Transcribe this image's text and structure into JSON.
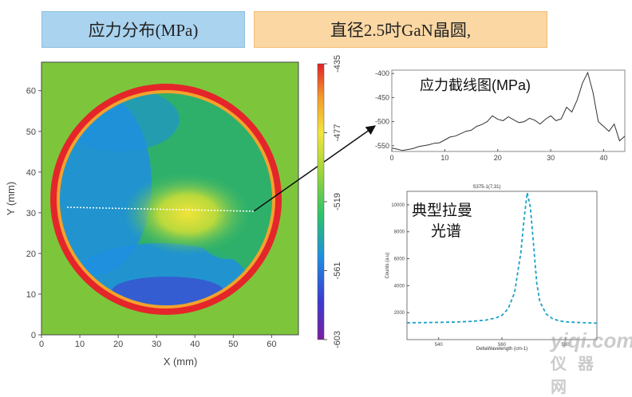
{
  "labels": {
    "stress_tag": "应力分布(MPa)",
    "wafer_tag": "直径2.5吋GaN晶圆,",
    "linescan_title": "应力截线图(MPa)",
    "raman_title_line1": "典型拉曼",
    "raman_title_line2": "光谱",
    "watermark_top": "yiqi.com",
    "watermark_bottom": "仪器网"
  },
  "chart_data": [
    {
      "type": "heatmap",
      "xlabel": "X (mm)",
      "ylabel": "Y (mm)",
      "xlim": [
        0,
        67
      ],
      "ylim": [
        0,
        67
      ],
      "xticks": [
        "0",
        "10",
        "20",
        "30",
        "40",
        "50",
        "60"
      ],
      "yticks": [
        "0",
        "10",
        "20",
        "30",
        "40",
        "50",
        "60"
      ],
      "colorbar": {
        "ticks": [
          "-435",
          "-477",
          "-519",
          "-561",
          "-603"
        ],
        "range": [
          -603,
          -435
        ],
        "colors": [
          "#7a1fa2",
          "#3b3bd1",
          "#1e8fe0",
          "#2bc36b",
          "#9ad33b",
          "#f3e53a",
          "#f39a2b",
          "#e0202a"
        ]
      },
      "annotation": "line scan at Y≈31 mm from X≈6 to X≈51 mm"
    },
    {
      "type": "line",
      "xlim": [
        0,
        44
      ],
      "ylim": [
        -562,
        -393
      ],
      "xticks": [
        "0",
        "10",
        "20",
        "30",
        "40"
      ],
      "yticks": [
        "-400",
        "-450",
        "-500",
        "-550"
      ],
      "x": [
        0,
        1,
        2,
        3,
        4,
        5,
        6,
        7,
        8,
        9,
        10,
        11,
        12,
        13,
        14,
        15,
        16,
        17,
        18,
        19,
        20,
        21,
        22,
        23,
        24,
        25,
        26,
        27,
        28,
        29,
        30,
        31,
        32,
        33,
        34,
        35,
        36,
        37,
        38,
        39,
        40,
        41,
        42,
        43,
        44
      ],
      "y": [
        -555,
        -557,
        -560,
        -558,
        -556,
        -552,
        -550,
        -548,
        -545,
        -544,
        -538,
        -532,
        -530,
        -525,
        -520,
        -518,
        -510,
        -506,
        -500,
        -488,
        -495,
        -498,
        -490,
        -496,
        -502,
        -500,
        -493,
        -497,
        -505,
        -495,
        -488,
        -498,
        -494,
        -470,
        -480,
        -455,
        -420,
        -398,
        -440,
        -500,
        -510,
        -520,
        -505,
        -540,
        -530
      ]
    },
    {
      "type": "line",
      "title": "S375-1(7,31)",
      "xlabel": "DeltaWavelength (cm-1)",
      "ylabel": "Counts (a.u)",
      "xlim": [
        530,
        590
      ],
      "ylim": [
        0,
        11000
      ],
      "xticks": [
        "540",
        "560",
        "580"
      ],
      "yticks": [
        "2000",
        "4000",
        "6000",
        "8000",
        "10000"
      ],
      "x": [
        530,
        535,
        540,
        545,
        550,
        555,
        558,
        560,
        562,
        564,
        566,
        567,
        568,
        569,
        570,
        571,
        572,
        574,
        576,
        578,
        580,
        585,
        590
      ],
      "y": [
        1250,
        1260,
        1280,
        1300,
        1350,
        1450,
        1600,
        1800,
        2300,
        3500,
        6500,
        9000,
        10900,
        9800,
        7000,
        4200,
        2800,
        1900,
        1550,
        1400,
        1320,
        1260,
        1220
      ]
    }
  ]
}
